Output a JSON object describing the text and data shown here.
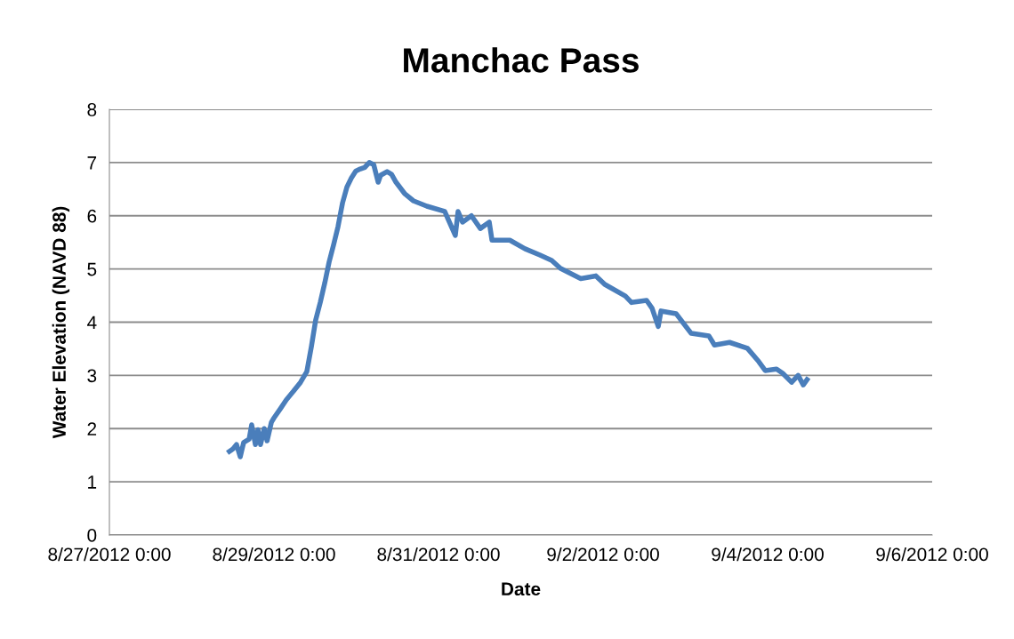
{
  "chart_data": {
    "type": "line",
    "title": "Manchac Pass",
    "xlabel": "Date",
    "ylabel": "Water Elevation (NAVD 88)",
    "x": [
      "2012-08-28T11:00",
      "2012-08-28T12:05",
      "2012-08-28T13:05",
      "2012-08-28T14:10",
      "2012-08-28T15:10",
      "2012-08-28T16:45",
      "2012-08-28T17:30",
      "2012-08-28T18:35",
      "2012-08-28T19:20",
      "2012-08-28T20:05",
      "2012-08-28T21:10",
      "2012-08-28T22:00",
      "2012-08-28T23:15",
      "2012-08-29T00:00",
      "2012-08-29T01:50",
      "2012-08-29T03:35",
      "2012-08-29T05:40",
      "2012-08-29T07:45",
      "2012-08-29T09:35",
      "2012-08-29T10:55",
      "2012-08-29T12:10",
      "2012-08-29T13:30",
      "2012-08-29T14:50",
      "2012-08-29T16:05",
      "2012-08-29T17:25",
      "2012-08-29T18:40",
      "2012-08-29T20:00",
      "2012-08-29T21:17",
      "2012-08-29T22:35",
      "2012-08-29T23:52",
      "2012-08-30T01:12",
      "2012-08-30T02:30",
      "2012-08-30T03:48",
      "2012-08-30T05:06",
      "2012-08-30T06:24",
      "2012-08-30T07:06",
      "2012-08-30T09:00",
      "2012-08-30T10:18",
      "2012-08-30T11:36",
      "2012-08-30T14:12",
      "2012-08-30T16:42",
      "2012-08-30T20:36",
      "2012-08-31T01:48",
      "2012-08-31T04:54",
      "2012-08-31T05:42",
      "2012-08-31T07:00",
      "2012-08-31T09:36",
      "2012-08-31T12:12",
      "2012-08-31T14:48",
      "2012-08-31T15:36",
      "2012-08-31T20:48",
      "2012-09-01T01:12",
      "2012-09-01T05:36",
      "2012-09-01T09:00",
      "2012-09-01T11:36",
      "2012-09-01T17:30",
      "2012-09-01T21:54",
      "2012-09-02T00:30",
      "2012-09-02T06:30",
      "2012-09-02T08:18",
      "2012-09-02T12:42",
      "2012-09-02T14:18",
      "2012-09-02T16:06",
      "2012-09-02T16:54",
      "2012-09-02T21:18",
      "2012-09-03T01:42",
      "2012-09-03T06:54",
      "2012-09-03T08:30",
      "2012-09-03T12:54",
      "2012-09-03T18:06",
      "2012-09-03T21:24",
      "2012-09-03T23:18",
      "2012-09-04T02:36",
      "2012-09-04T04:24",
      "2012-09-04T07:00",
      "2012-09-04T08:54",
      "2012-09-04T10:24",
      "2012-09-04T11:30"
    ],
    "series": [
      {
        "color": "#4a7ebb",
        "values": [
          1.57,
          1.62,
          1.7,
          1.47,
          1.74,
          1.8,
          2.07,
          1.7,
          1.98,
          1.7,
          2.0,
          1.77,
          2.12,
          2.2,
          2.37,
          2.54,
          2.7,
          2.87,
          3.07,
          3.54,
          4.04,
          4.37,
          4.74,
          5.13,
          5.46,
          5.79,
          6.24,
          6.54,
          6.71,
          6.84,
          6.88,
          6.91,
          7.0,
          6.96,
          6.63,
          6.76,
          6.83,
          6.78,
          6.63,
          6.41,
          6.28,
          6.18,
          6.08,
          5.63,
          6.08,
          5.88,
          6.0,
          5.76,
          5.88,
          5.54,
          5.54,
          5.38,
          5.26,
          5.16,
          5.01,
          4.82,
          4.87,
          4.71,
          4.49,
          4.37,
          4.41,
          4.26,
          3.92,
          4.21,
          4.16,
          3.79,
          3.74,
          3.57,
          3.62,
          3.51,
          3.26,
          3.09,
          3.12,
          3.04,
          2.87,
          3.0,
          2.82,
          2.92
        ]
      }
    ],
    "xlim": [
      "2012-08-27T00:00",
      "2012-09-06T00:00"
    ],
    "xticks": [
      {
        "value": "2012-08-27T00:00",
        "label": "8/27/2012 0:00"
      },
      {
        "value": "2012-08-29T00:00",
        "label": "8/29/2012 0:00"
      },
      {
        "value": "2012-08-31T00:00",
        "label": "8/31/2012 0:00"
      },
      {
        "value": "2012-09-02T00:00",
        "label": "9/2/2012 0:00"
      },
      {
        "value": "2012-09-04T00:00",
        "label": "9/4/2012 0:00"
      },
      {
        "value": "2012-09-06T00:00",
        "label": "9/6/2012 0:00"
      }
    ],
    "ylim": [
      0,
      8
    ],
    "yticks": [
      0,
      1,
      2,
      3,
      4,
      5,
      6,
      7,
      8
    ],
    "grid": "y",
    "marker": "none",
    "line_style": "solid"
  }
}
